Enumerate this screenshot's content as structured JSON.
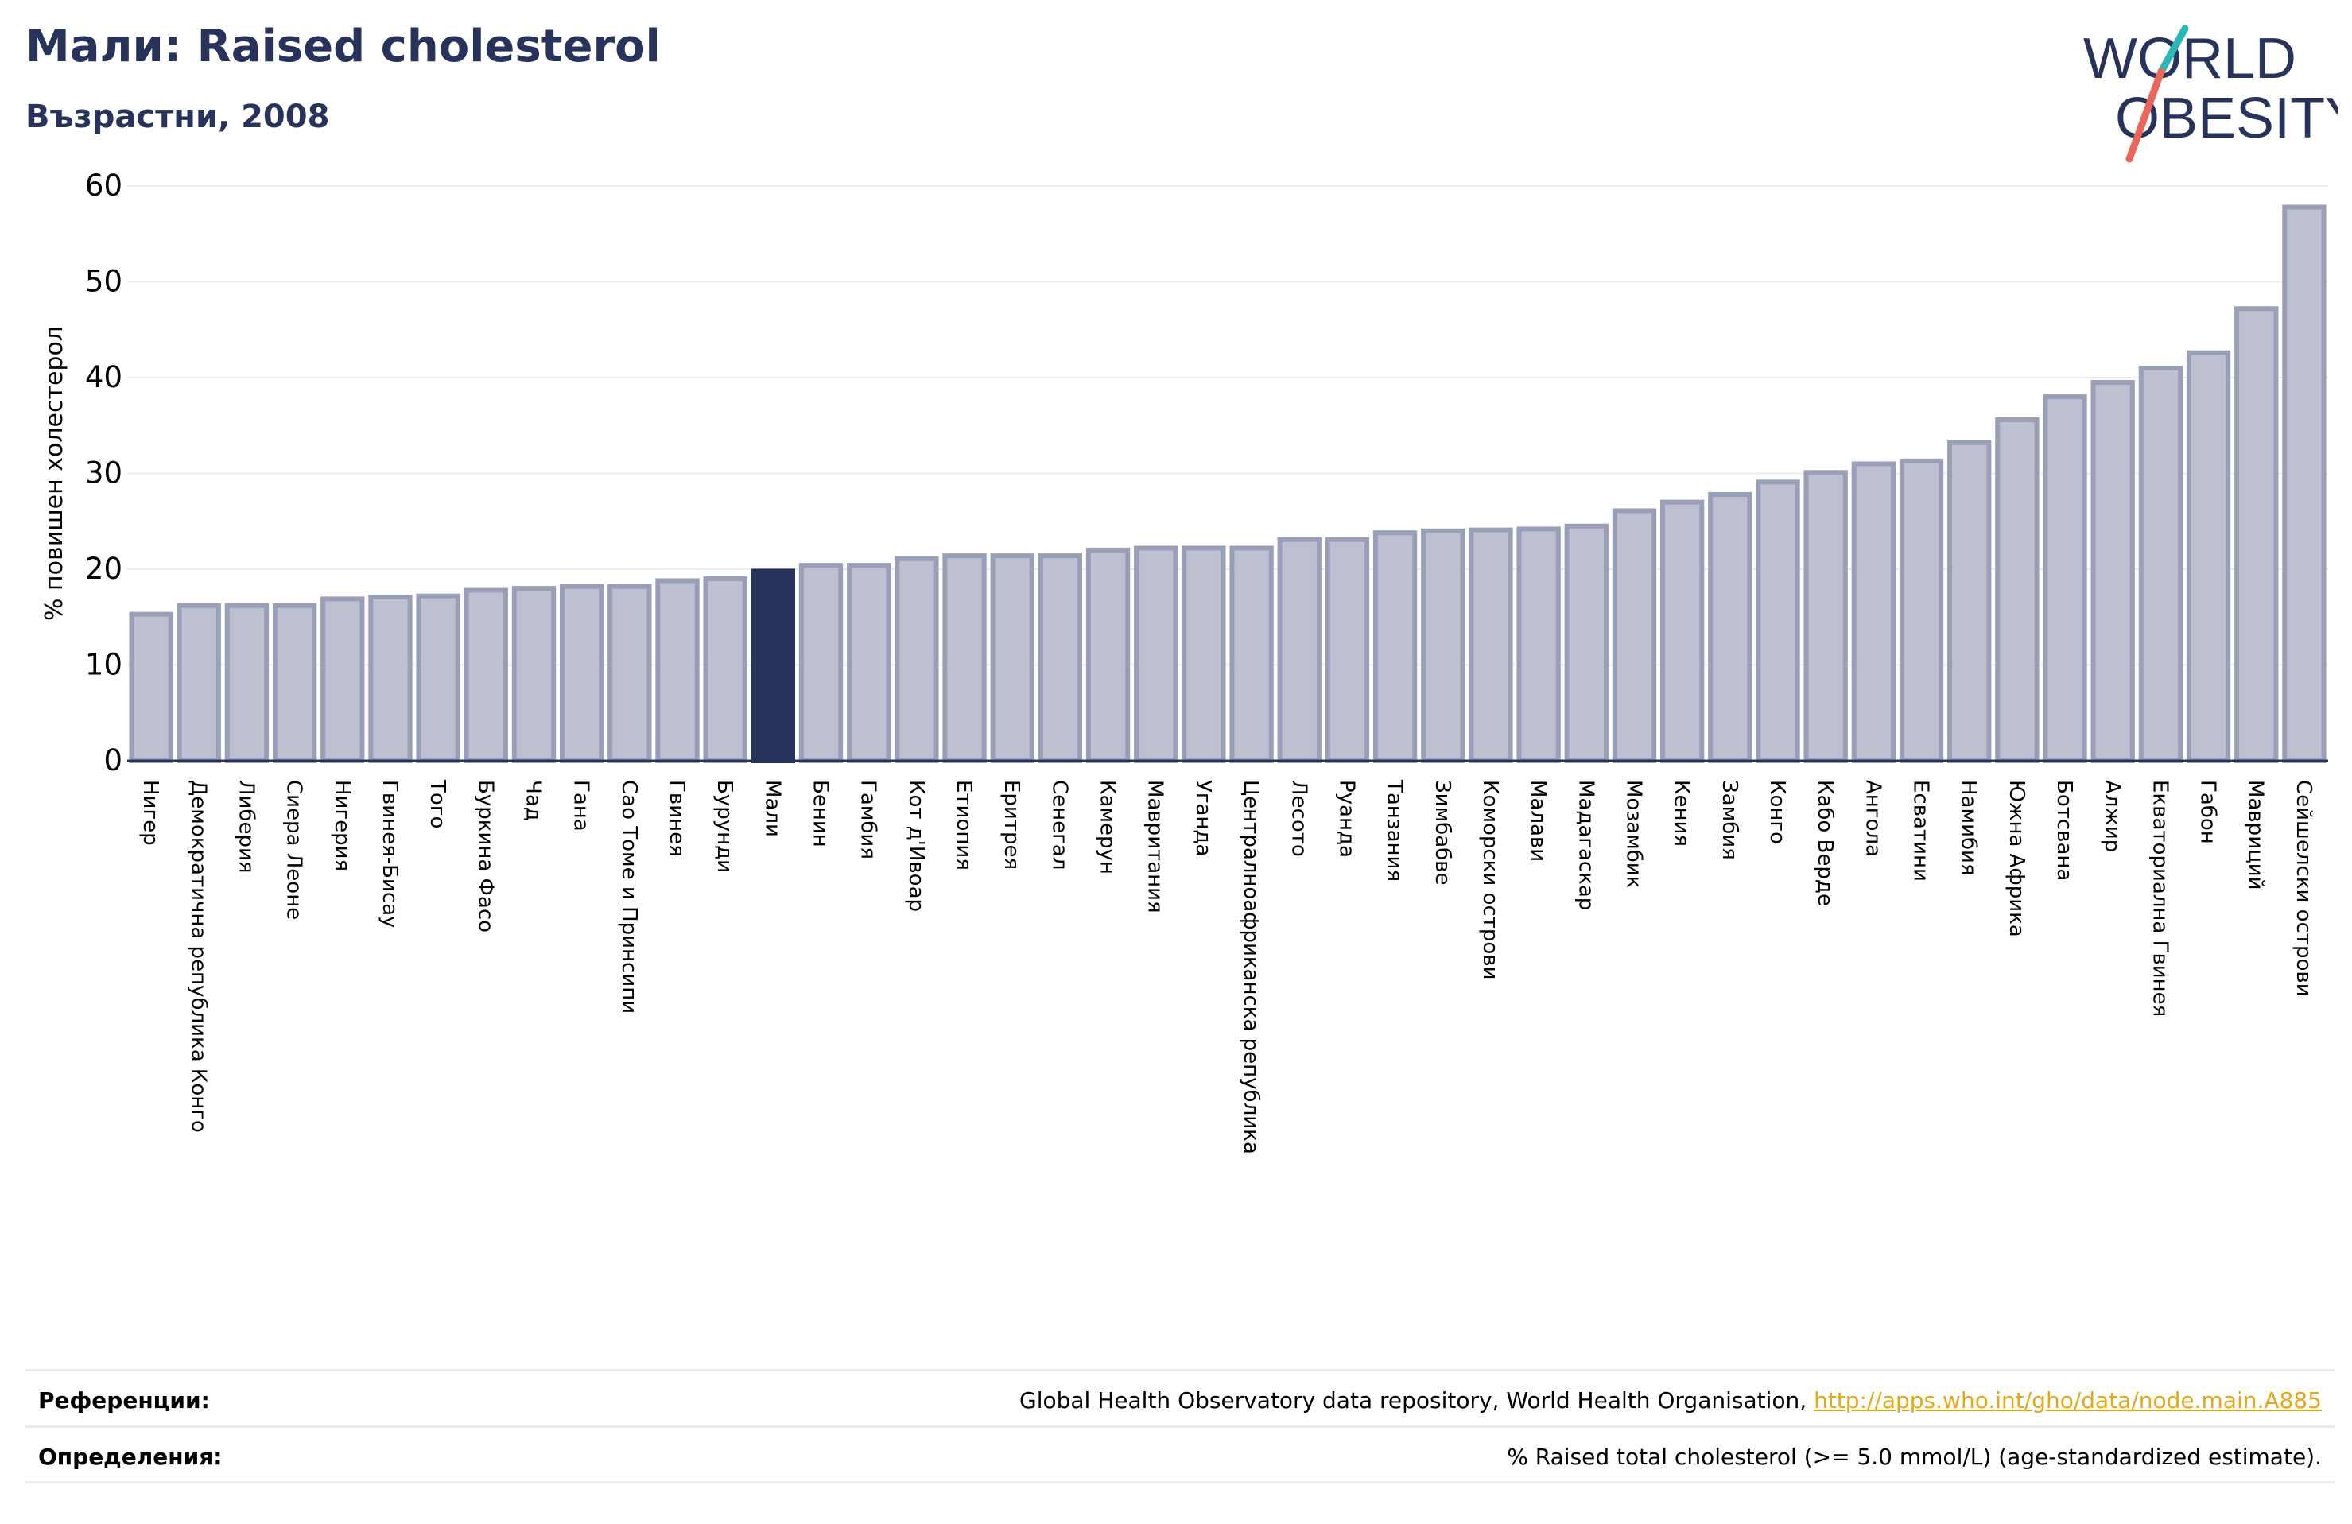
{
  "header": {
    "title": "Мали: Raised cholesterol",
    "subtitle": "Възрастни, 2008"
  },
  "logo": {
    "line1": "WORLD",
    "line2": "OBESITY"
  },
  "colors": {
    "highlight": "#28335b",
    "bar_fill": "#bcc0d0",
    "bar_stroke": "#9a9fb8",
    "link": "#e6a817",
    "logo_teal": "#2ab7b7",
    "logo_red": "#e8665a"
  },
  "chart_data": {
    "type": "bar",
    "title": "Мали: Raised cholesterol",
    "subtitle": "Възрастни, 2008",
    "ylabel": "% повишен холестерол",
    "xlabel": "",
    "ylim": [
      0,
      60
    ],
    "yticks": [
      "0",
      "10",
      "20",
      "30",
      "40",
      "50",
      "60"
    ],
    "grid": true,
    "highlight_category": "Мали",
    "categories": [
      "Нигер",
      "Демократична републикa Конго",
      "Либерия",
      "Сиера Леоне",
      "Нигерия",
      "Гвинея-Бисау",
      "Того",
      "Буркина Фасо",
      "Чад",
      "Гана",
      "Сао Томе и Принсипи",
      "Гвинея",
      "Бурунди",
      "Мали",
      "Бенин",
      "Гамбия",
      "Кот д'Ивоар",
      "Етиопия",
      "Еритрея",
      "Сенегал",
      "Камерун",
      "Мавритания",
      "Уганда",
      "Централноафриканска република",
      "Лесото",
      "Руанда",
      "Танзания",
      "Зимбабве",
      "Коморски острови",
      "Малави",
      "Мадагаскар",
      "Мозамбик",
      "Кения",
      "Замбия",
      "Конго",
      "Кабо Верде",
      "Ангола",
      "Есватини",
      "Намибия",
      "Южна Африка",
      "Ботсвана",
      "Алжир",
      "Екваториална Гвинея",
      "Габон",
      "Мавриций",
      "Сейшелски острови"
    ],
    "values": [
      15.3,
      16.2,
      16.2,
      16.2,
      16.9,
      17.1,
      17.2,
      17.8,
      18.0,
      18.2,
      18.2,
      18.8,
      19.0,
      19.8,
      20.4,
      20.4,
      21.1,
      21.4,
      21.4,
      21.4,
      22.0,
      22.2,
      22.2,
      22.2,
      23.1,
      23.1,
      23.8,
      24.0,
      24.1,
      24.2,
      24.5,
      26.1,
      27.0,
      27.8,
      29.1,
      30.1,
      31.0,
      31.3,
      33.2,
      35.6,
      38.0,
      39.5,
      41.0,
      42.6,
      47.2,
      57.8
    ]
  },
  "footer": {
    "references_label": "Референции:",
    "references_text": "Global Health Observatory data repository, World Health Organisation, ",
    "references_link": "http://apps.who.int/gho/data/node.main.A885",
    "definitions_label": "Определения:",
    "definitions_text": "% Raised total cholesterol (>= 5.0 mmol/L) (age-standardized estimate)."
  }
}
